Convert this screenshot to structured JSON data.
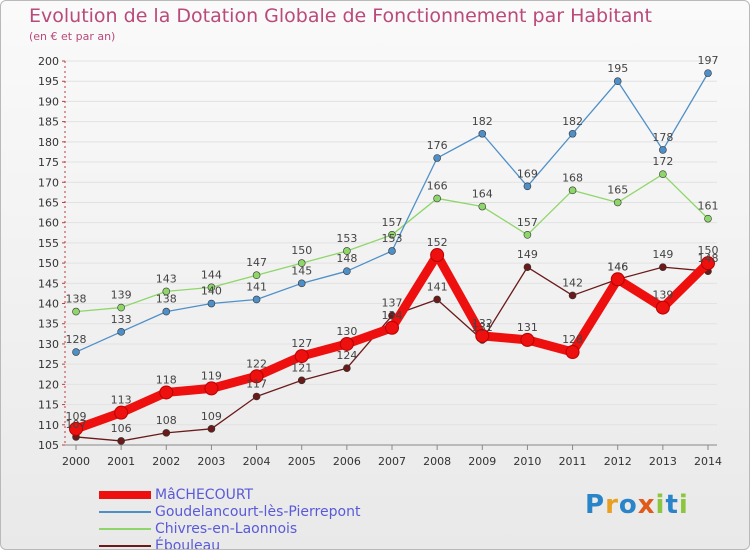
{
  "title": "Evolution de la Dotation Globale de Fonctionnement par Habitant",
  "subtitle": "(en € et par an)",
  "logo": "Proxiti",
  "chart_data": {
    "type": "line",
    "x": [
      "2000",
      "2001",
      "2002",
      "2003",
      "2004",
      "2005",
      "2006",
      "2007",
      "2008",
      "2009",
      "2010",
      "2011",
      "2012",
      "2013",
      "2014"
    ],
    "ylim": [
      105,
      200
    ],
    "yticks": [
      105,
      110,
      115,
      120,
      125,
      130,
      135,
      140,
      145,
      150,
      155,
      160,
      165,
      170,
      175,
      180,
      185,
      190,
      195,
      200
    ],
    "series": [
      {
        "name": "Chivres-en-Laonnois",
        "color": "#8fd66a",
        "values": [
          138,
          139,
          143,
          144,
          147,
          150,
          153,
          157,
          166,
          164,
          157,
          168,
          165,
          172,
          161
        ],
        "labels": [
          "138",
          "139",
          "143",
          "144",
          "147",
          "150",
          "153",
          "157",
          "166",
          "164",
          "157",
          "168",
          "165",
          "172",
          "161"
        ]
      },
      {
        "name": "Goudelancourt-lès-Pierrepont",
        "color": "#4f8fc8",
        "values": [
          128,
          133,
          138,
          140,
          141,
          145,
          148,
          153,
          176,
          182,
          169,
          182,
          195,
          178,
          197
        ],
        "labels": [
          "128",
          "133",
          "138",
          "140",
          "141",
          "145",
          "148",
          "153",
          "176",
          "182",
          "169",
          "182",
          "195",
          "178",
          "197"
        ]
      },
      {
        "name": "Ébouleau",
        "color": "#6b1a1a",
        "values": [
          107,
          106,
          108,
          109,
          117,
          121,
          124,
          137,
          141,
          131,
          149,
          142,
          146,
          149,
          148
        ],
        "labels": [
          "107",
          "106",
          "108",
          "109",
          "117",
          "121",
          "124",
          "137",
          "141",
          "131",
          "149",
          "142",
          "146",
          "149",
          "148"
        ]
      },
      {
        "name": "MâCHECOURT",
        "color": "#ee0f0f",
        "values": [
          109,
          113,
          118,
          119,
          122,
          127,
          130,
          134,
          152,
          132,
          131,
          128,
          146,
          139,
          150
        ],
        "labels": [
          "109",
          "113",
          "118",
          "119",
          "122",
          "127",
          "130",
          "134",
          "152",
          "132",
          "131",
          "128",
          "146",
          "139",
          "150"
        ]
      }
    ]
  }
}
